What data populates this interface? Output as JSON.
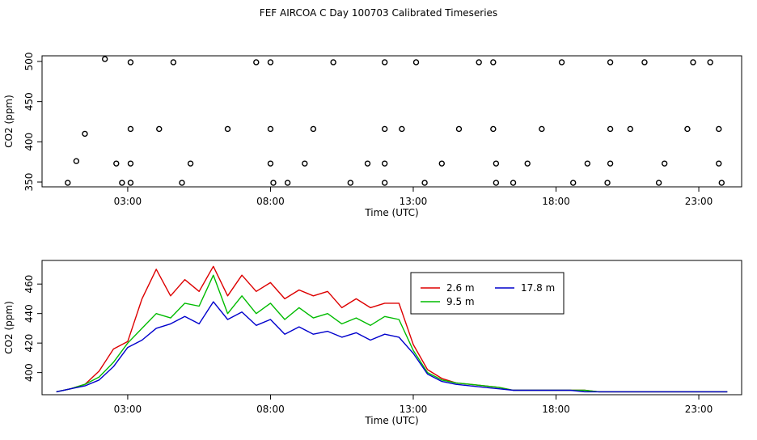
{
  "title": "FEF AIRCOA C  Day 100703  Calibrated Timeseries",
  "colors": {
    "2.6 m": "#dd0000",
    "9.5 m": "#00bb00",
    "17.8 m": "#0000cc",
    "axes": "#000000"
  },
  "chart_data": [
    {
      "type": "scatter",
      "title": "",
      "xlabel": "Time (UTC)",
      "ylabel": "CO2 (ppm)",
      "xlim": [
        0,
        24.5
      ],
      "ylim": [
        344,
        507
      ],
      "xticks": [
        3,
        8,
        13,
        18,
        23
      ],
      "xtick_labels": [
        "03:00",
        "08:00",
        "13:00",
        "18:00",
        "23:00"
      ],
      "yticks": [
        350,
        400,
        450,
        500
      ],
      "ytick_labels": [
        "350",
        "400",
        "450",
        "500"
      ],
      "grid": false,
      "legend": "none",
      "points": [
        [
          2.2,
          503
        ],
        [
          3.1,
          499
        ],
        [
          4.6,
          499
        ],
        [
          7.5,
          499
        ],
        [
          8.0,
          499
        ],
        [
          10.2,
          499
        ],
        [
          12.0,
          499
        ],
        [
          13.1,
          499
        ],
        [
          15.3,
          499
        ],
        [
          15.8,
          499
        ],
        [
          18.2,
          499
        ],
        [
          19.9,
          499
        ],
        [
          21.1,
          499
        ],
        [
          22.8,
          499
        ],
        [
          23.4,
          499
        ],
        [
          1.5,
          410
        ],
        [
          3.1,
          416
        ],
        [
          4.1,
          416
        ],
        [
          6.5,
          416
        ],
        [
          8.0,
          416
        ],
        [
          9.5,
          416
        ],
        [
          12.0,
          416
        ],
        [
          12.6,
          416
        ],
        [
          14.6,
          416
        ],
        [
          15.8,
          416
        ],
        [
          17.5,
          416
        ],
        [
          19.9,
          416
        ],
        [
          20.6,
          416
        ],
        [
          22.6,
          416
        ],
        [
          23.7,
          416
        ],
        [
          1.2,
          376
        ],
        [
          2.6,
          373
        ],
        [
          3.1,
          373
        ],
        [
          5.2,
          373
        ],
        [
          8.0,
          373
        ],
        [
          9.2,
          373
        ],
        [
          11.4,
          373
        ],
        [
          12.0,
          373
        ],
        [
          14.0,
          373
        ],
        [
          15.9,
          373
        ],
        [
          17.0,
          373
        ],
        [
          19.1,
          373
        ],
        [
          19.9,
          373
        ],
        [
          21.8,
          373
        ],
        [
          23.7,
          373
        ],
        [
          0.9,
          349
        ],
        [
          2.8,
          349
        ],
        [
          3.1,
          349
        ],
        [
          4.9,
          349
        ],
        [
          8.1,
          349
        ],
        [
          8.6,
          349
        ],
        [
          10.8,
          349
        ],
        [
          12.0,
          349
        ],
        [
          13.4,
          349
        ],
        [
          15.9,
          349
        ],
        [
          16.5,
          349
        ],
        [
          18.6,
          349
        ],
        [
          19.8,
          349
        ],
        [
          21.6,
          349
        ],
        [
          23.8,
          349
        ]
      ]
    },
    {
      "type": "line",
      "title": "",
      "xlabel": "Time (UTC)",
      "ylabel": "CO2 (ppm)",
      "xlim": [
        0,
        24.5
      ],
      "ylim": [
        385,
        476
      ],
      "xticks": [
        3,
        8,
        13,
        18,
        23
      ],
      "xtick_labels": [
        "03:00",
        "08:00",
        "13:00",
        "18:00",
        "23:00"
      ],
      "yticks": [
        400,
        420,
        440,
        460
      ],
      "ytick_labels": [
        "400",
        "420",
        "440",
        "460"
      ],
      "grid": false,
      "legend": "top-right",
      "x": [
        0.5,
        1.0,
        1.5,
        2.0,
        2.5,
        3.0,
        3.5,
        4.0,
        4.5,
        5.0,
        5.5,
        6.0,
        6.5,
        7.0,
        7.5,
        8.0,
        8.5,
        9.0,
        9.5,
        10.0,
        10.5,
        11.0,
        11.5,
        12.0,
        12.5,
        13.0,
        13.5,
        14.0,
        14.5,
        15.0,
        15.5,
        16.0,
        16.5,
        17.0,
        17.5,
        18.0,
        18.5,
        19.0,
        19.5,
        20.0,
        20.5,
        21.0,
        21.5,
        22.0,
        22.5,
        23.0,
        23.5,
        24.0
      ],
      "series": [
        {
          "name": "2.6 m",
          "color": "#dd0000",
          "values": [
            387,
            389,
            392,
            401,
            416,
            421,
            450,
            470,
            452,
            463,
            455,
            472,
            452,
            466,
            455,
            461,
            450,
            456,
            452,
            455,
            444,
            450,
            444,
            447,
            447,
            419,
            402,
            396,
            393,
            392,
            391,
            390,
            388,
            388,
            388,
            388,
            388,
            388,
            387,
            387,
            387,
            387,
            387,
            387,
            387,
            387,
            387,
            387
          ]
        },
        {
          "name": "9.5 m",
          "color": "#00bb00",
          "values": [
            387,
            389,
            392,
            397,
            407,
            420,
            430,
            440,
            437,
            447,
            445,
            466,
            440,
            452,
            440,
            447,
            436,
            444,
            437,
            440,
            433,
            437,
            432,
            438,
            436,
            415,
            400,
            395,
            393,
            392,
            391,
            390,
            388,
            388,
            388,
            388,
            388,
            388,
            387,
            387,
            387,
            387,
            387,
            387,
            387,
            387,
            387,
            387
          ]
        },
        {
          "name": "17.8 m",
          "color": "#0000cc",
          "values": [
            387,
            389,
            391,
            395,
            404,
            417,
            422,
            430,
            433,
            438,
            433,
            448,
            436,
            441,
            432,
            436,
            426,
            431,
            426,
            428,
            424,
            427,
            422,
            426,
            424,
            413,
            399,
            394,
            392,
            391,
            390,
            389,
            388,
            388,
            388,
            388,
            388,
            387,
            387,
            387,
            387,
            387,
            387,
            387,
            387,
            387,
            387,
            387
          ]
        }
      ]
    }
  ]
}
